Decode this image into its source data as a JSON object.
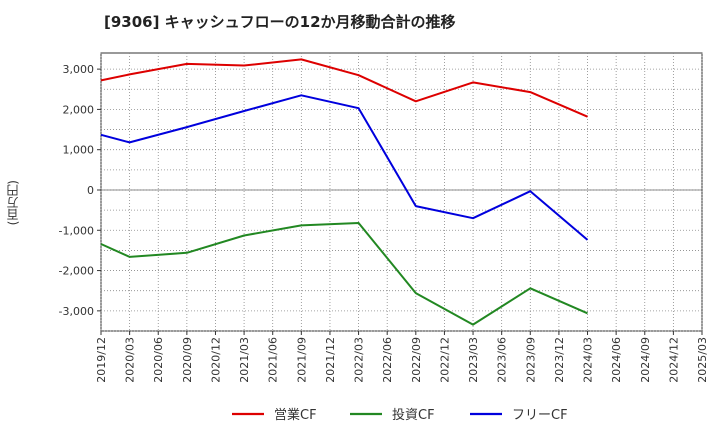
{
  "chart_data": {
    "type": "line",
    "title": "[9306]  キャッシュフローの12か月移動合計の推移",
    "ylabel": "(百万円)",
    "xlabel": "",
    "ylim": [
      -3500,
      3400
    ],
    "yticks": [
      3000,
      2000,
      1000,
      0,
      -1000,
      -2000,
      -3000
    ],
    "ytick_labels": [
      "3,000",
      "2,000",
      "1,000",
      "0",
      "-1,000",
      "-2,000",
      "-3,000"
    ],
    "x_tick_labels": [
      "2019/12",
      "2020/03",
      "2020/06",
      "2020/09",
      "2020/12",
      "2021/03",
      "2021/06",
      "2021/09",
      "2021/12",
      "2022/03",
      "2022/06",
      "2022/09",
      "2022/12",
      "2023/03",
      "2023/06",
      "2023/09",
      "2023/12",
      "2024/03",
      "2024/06",
      "2024/09",
      "2024/12",
      "2025/03"
    ],
    "grid": true,
    "legend_position": "bottom",
    "series": [
      {
        "name": "営業CF",
        "color": "#dd0000",
        "x": [
          "2019/12",
          "2020/03",
          "2020/09",
          "2021/03",
          "2021/09",
          "2022/03",
          "2022/09",
          "2023/03",
          "2023/09",
          "2024/03"
        ],
        "values": [
          2720,
          2870,
          3130,
          3090,
          3240,
          2850,
          2200,
          2670,
          2430,
          1820
        ]
      },
      {
        "name": "投資CF",
        "color": "#228822",
        "x": [
          "2019/12",
          "2020/03",
          "2020/09",
          "2021/03",
          "2021/09",
          "2022/03",
          "2022/09",
          "2023/03",
          "2023/09",
          "2024/03"
        ],
        "values": [
          -1340,
          -1660,
          -1560,
          -1130,
          -880,
          -820,
          -2560,
          -3340,
          -2440,
          -3060
        ]
      },
      {
        "name": "フリーCF",
        "color": "#0000dd",
        "x": [
          "2019/12",
          "2020/03",
          "2020/09",
          "2021/03",
          "2021/09",
          "2022/03",
          "2022/09",
          "2023/03",
          "2023/09",
          "2024/03"
        ],
        "values": [
          1370,
          1180,
          1560,
          1960,
          2350,
          2030,
          -400,
          -700,
          -30,
          -1240
        ]
      }
    ]
  }
}
